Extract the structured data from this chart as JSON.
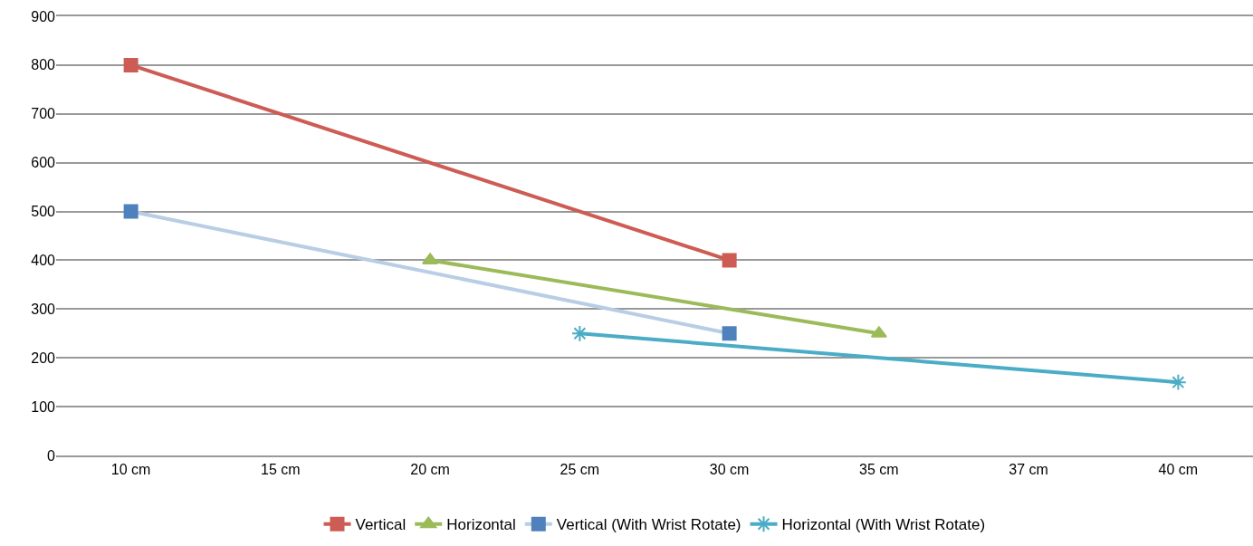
{
  "chart_data": {
    "type": "line",
    "categories": [
      "10 cm",
      "15 cm",
      "20 cm",
      "25 cm",
      "30 cm",
      "35 cm",
      "37 cm",
      "40 cm"
    ],
    "series": [
      {
        "name": "Vertical",
        "color": "#cd5c54",
        "marker": "square",
        "values": [
          800,
          null,
          null,
          null,
          400,
          null,
          null,
          null
        ]
      },
      {
        "name": "Horizontal",
        "color": "#9bbb59",
        "marker": "triangle",
        "values": [
          null,
          null,
          400,
          null,
          null,
          250,
          null,
          null
        ]
      },
      {
        "name": "Vertical (With Wrist Rotate)",
        "color": "#b9cde5",
        "colors": [
          "#4f81bd",
          null,
          null,
          null,
          "#4f81bd",
          null,
          null,
          null
        ],
        "marker": "square",
        "values": [
          500,
          null,
          null,
          null,
          250,
          null,
          null,
          null
        ]
      },
      {
        "name": "Horizontal (With Wrist Rotate)",
        "color": "#4bacc6",
        "marker": "cross",
        "values": [
          null,
          null,
          null,
          250,
          null,
          null,
          null,
          150
        ]
      }
    ],
    "ylim": [
      0,
      900
    ],
    "yticks": [
      0,
      100,
      200,
      300,
      400,
      500,
      600,
      700,
      800,
      900
    ],
    "grid": "y",
    "legend": "bottom",
    "line_style": "solid"
  }
}
